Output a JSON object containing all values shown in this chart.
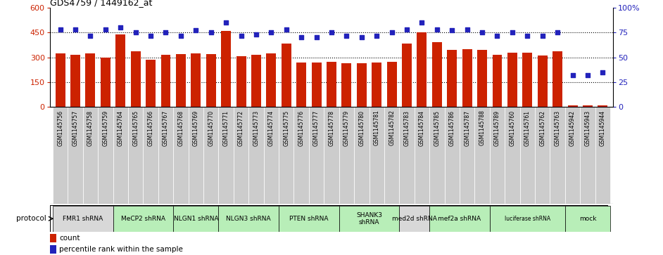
{
  "title": "GDS4759 / 1449162_at",
  "samples": [
    "GSM1145756",
    "GSM1145757",
    "GSM1145758",
    "GSM1145759",
    "GSM1145764",
    "GSM1145765",
    "GSM1145766",
    "GSM1145767",
    "GSM1145768",
    "GSM1145769",
    "GSM1145770",
    "GSM1145771",
    "GSM1145772",
    "GSM1145773",
    "GSM1145774",
    "GSM1145775",
    "GSM1145776",
    "GSM1145777",
    "GSM1145778",
    "GSM1145779",
    "GSM1145780",
    "GSM1145781",
    "GSM1145782",
    "GSM1145783",
    "GSM1145784",
    "GSM1145785",
    "GSM1145786",
    "GSM1145787",
    "GSM1145788",
    "GSM1145789",
    "GSM1145760",
    "GSM1145761",
    "GSM1145762",
    "GSM1145763",
    "GSM1145942",
    "GSM1145943",
    "GSM1145944"
  ],
  "counts": [
    325,
    315,
    325,
    300,
    440,
    335,
    285,
    315,
    320,
    325,
    320,
    460,
    305,
    315,
    325,
    385,
    270,
    270,
    275,
    265,
    265,
    270,
    275,
    385,
    450,
    390,
    345,
    350,
    345,
    315,
    330,
    330,
    310,
    335,
    12,
    12,
    12
  ],
  "percentiles": [
    78,
    78,
    72,
    78,
    80,
    75,
    72,
    75,
    72,
    77,
    75,
    85,
    72,
    73,
    75,
    78,
    70,
    70,
    75,
    72,
    70,
    72,
    75,
    78,
    85,
    78,
    77,
    78,
    75,
    72,
    75,
    72,
    72,
    75,
    32,
    32,
    35
  ],
  "ylim_left": [
    0,
    600
  ],
  "ylim_right": [
    0,
    100
  ],
  "yticks_left": [
    0,
    150,
    300,
    450,
    600
  ],
  "yticks_right": [
    0,
    25,
    50,
    75,
    100
  ],
  "bar_color": "#cc2200",
  "dot_color": "#2222bb",
  "grid_color": "#000000",
  "protocols": [
    {
      "label": "FMR1 shRNA",
      "start": 0,
      "end": 4,
      "color": "#d8d8d8"
    },
    {
      "label": "MeCP2 shRNA",
      "start": 4,
      "end": 8,
      "color": "#b8eeb8"
    },
    {
      "label": "NLGN1 shRNA",
      "start": 8,
      "end": 11,
      "color": "#b8eeb8"
    },
    {
      "label": "NLGN3 shRNA",
      "start": 11,
      "end": 15,
      "color": "#b8eeb8"
    },
    {
      "label": "PTEN shRNA",
      "start": 15,
      "end": 19,
      "color": "#b8eeb8"
    },
    {
      "label": "SHANK3\nshRNA",
      "start": 19,
      "end": 23,
      "color": "#b8eeb8"
    },
    {
      "label": "med2d shRNA",
      "start": 23,
      "end": 25,
      "color": "#d8d8d8"
    },
    {
      "label": "mef2a shRNA",
      "start": 25,
      "end": 29,
      "color": "#b8eeb8"
    },
    {
      "label": "luciferase shRNA",
      "start": 29,
      "end": 34,
      "color": "#b8eeb8"
    },
    {
      "label": "mock",
      "start": 34,
      "end": 37,
      "color": "#b8eeb8"
    }
  ],
  "tick_bg_color": "#cccccc",
  "background_color": "#ffffff",
  "fig_width": 9.42,
  "fig_height": 3.63,
  "dpi": 100
}
